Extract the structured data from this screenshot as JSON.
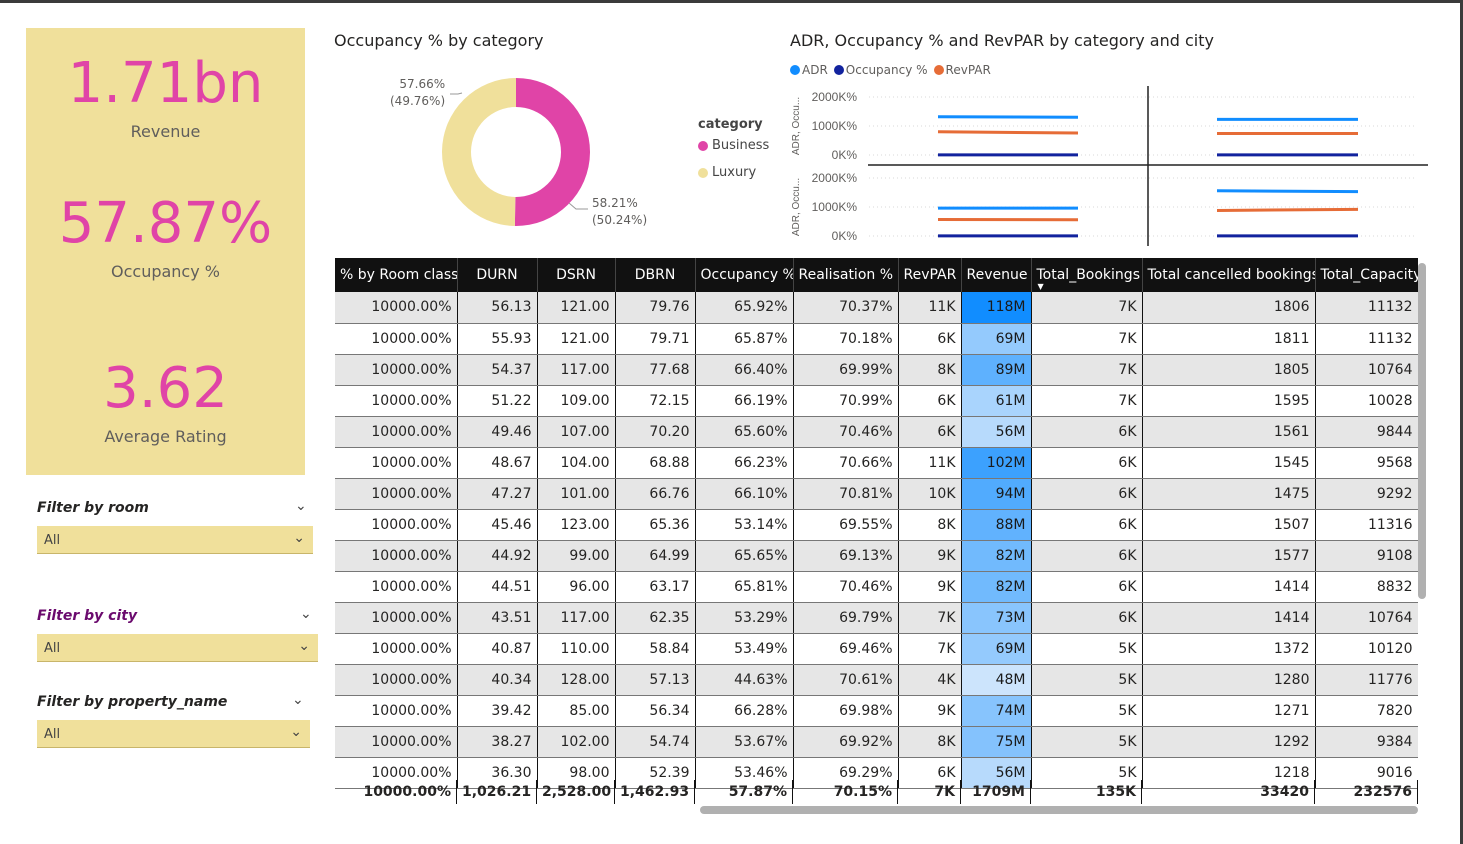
{
  "kpis": [
    {
      "value": "1.71bn",
      "label": "Revenue"
    },
    {
      "value": "57.87%",
      "label": "Occupancy %"
    },
    {
      "value": "3.62",
      "label": "Average Rating"
    }
  ],
  "slicers": [
    {
      "title": "Filter by room",
      "value": "All"
    },
    {
      "title": "Filter by city",
      "value": "All"
    },
    {
      "title": "Filter by property_name",
      "value": "All"
    }
  ],
  "donut": {
    "title": "Occupancy % by category",
    "legend_title": "category",
    "slices": [
      {
        "name": "Business",
        "value": 58.21,
        "label_main": "58.21%",
        "label_sub": "(50.24%)",
        "color": "#e044a7"
      },
      {
        "name": "Luxury",
        "value": 57.66,
        "label_main": "57.66%",
        "label_sub": "(49.76%)",
        "color": "#f0e09b"
      }
    ]
  },
  "line_chart": {
    "title": "ADR, Occupancy % and RevPAR by category and city",
    "legend": [
      {
        "name": "ADR",
        "color": "#118dff"
      },
      {
        "name": "Occupancy %",
        "color": "#12239e"
      },
      {
        "name": "RevPAR",
        "color": "#e66c37"
      }
    ],
    "y_axis_label": "ADR, Occu...",
    "y_ticks": [
      "2000K%",
      "1000K%",
      "0K%"
    ]
  },
  "chart_data": {
    "type": "line",
    "title": "ADR, Occupancy % and RevPAR by category and city",
    "ylabel": "ADR, Occu...",
    "ylim": [
      0,
      2500000
    ],
    "panels": [
      {
        "series": [
          {
            "name": "ADR",
            "values": [
              1320000,
              1300000
            ]
          },
          {
            "name": "Occupancy %",
            "values": [
              5800,
              5800
            ]
          },
          {
            "name": "RevPAR",
            "values": [
              800000,
              760000
            ]
          }
        ]
      },
      {
        "series": [
          {
            "name": "ADR",
            "values": [
              1230000,
              1230000
            ]
          },
          {
            "name": "Occupancy %",
            "values": [
              5800,
              5800
            ]
          },
          {
            "name": "RevPAR",
            "values": [
              740000,
              740000
            ]
          }
        ]
      },
      {
        "series": [
          {
            "name": "ADR",
            "values": [
              960000,
              960000
            ]
          },
          {
            "name": "Occupancy %",
            "values": [
              5800,
              5800
            ]
          },
          {
            "name": "RevPAR",
            "values": [
              570000,
              560000
            ]
          }
        ]
      },
      {
        "series": [
          {
            "name": "ADR",
            "values": [
              1560000,
              1530000
            ]
          },
          {
            "name": "Occupancy %",
            "values": [
              5800,
              5800
            ]
          },
          {
            "name": "RevPAR",
            "values": [
              880000,
              920000
            ]
          }
        ]
      }
    ]
  },
  "table": {
    "columns": [
      "% by Room class",
      "DURN",
      "DSRN",
      "DBRN",
      "Occupancy %",
      "Realisation %",
      "RevPAR",
      "Revenue",
      "Total_Bookings",
      "Total cancelled bookings",
      "Total_Capacity"
    ],
    "rows": [
      [
        "10000.00%",
        "56.13",
        "121.00",
        "79.76",
        "65.92%",
        "70.37%",
        "11K",
        "118M",
        "7K",
        "1806",
        "11132"
      ],
      [
        "10000.00%",
        "55.93",
        "121.00",
        "79.71",
        "65.87%",
        "70.18%",
        "6K",
        "69M",
        "7K",
        "1811",
        "11132"
      ],
      [
        "10000.00%",
        "54.37",
        "117.00",
        "77.68",
        "66.40%",
        "69.99%",
        "8K",
        "89M",
        "7K",
        "1805",
        "10764"
      ],
      [
        "10000.00%",
        "51.22",
        "109.00",
        "72.15",
        "66.19%",
        "70.99%",
        "6K",
        "61M",
        "7K",
        "1595",
        "10028"
      ],
      [
        "10000.00%",
        "49.46",
        "107.00",
        "70.20",
        "65.60%",
        "70.46%",
        "6K",
        "56M",
        "6K",
        "1561",
        "9844"
      ],
      [
        "10000.00%",
        "48.67",
        "104.00",
        "68.88",
        "66.23%",
        "70.66%",
        "11K",
        "102M",
        "6K",
        "1545",
        "9568"
      ],
      [
        "10000.00%",
        "47.27",
        "101.00",
        "66.76",
        "66.10%",
        "70.81%",
        "10K",
        "94M",
        "6K",
        "1475",
        "9292"
      ],
      [
        "10000.00%",
        "45.46",
        "123.00",
        "65.36",
        "53.14%",
        "69.55%",
        "8K",
        "88M",
        "6K",
        "1507",
        "11316"
      ],
      [
        "10000.00%",
        "44.92",
        "99.00",
        "64.99",
        "65.65%",
        "69.13%",
        "9K",
        "82M",
        "6K",
        "1577",
        "9108"
      ],
      [
        "10000.00%",
        "44.51",
        "96.00",
        "63.17",
        "65.81%",
        "70.46%",
        "9K",
        "82M",
        "6K",
        "1414",
        "8832"
      ],
      [
        "10000.00%",
        "43.51",
        "117.00",
        "62.35",
        "53.29%",
        "69.79%",
        "7K",
        "73M",
        "6K",
        "1414",
        "10764"
      ],
      [
        "10000.00%",
        "40.87",
        "110.00",
        "58.84",
        "53.49%",
        "69.46%",
        "7K",
        "69M",
        "5K",
        "1372",
        "10120"
      ],
      [
        "10000.00%",
        "40.34",
        "128.00",
        "57.13",
        "44.63%",
        "70.61%",
        "4K",
        "48M",
        "5K",
        "1280",
        "11776"
      ],
      [
        "10000.00%",
        "39.42",
        "85.00",
        "56.34",
        "66.28%",
        "69.98%",
        "9K",
        "74M",
        "5K",
        "1271",
        "7820"
      ],
      [
        "10000.00%",
        "38.27",
        "102.00",
        "54.74",
        "53.67%",
        "69.92%",
        "8K",
        "75M",
        "5K",
        "1292",
        "9384"
      ],
      [
        "10000.00%",
        "36.30",
        "98.00",
        "52.39",
        "53.46%",
        "69.29%",
        "6K",
        "56M",
        "5K",
        "1218",
        "9016"
      ]
    ],
    "revenue_values": [
      118,
      69,
      89,
      61,
      56,
      102,
      94,
      88,
      82,
      82,
      73,
      69,
      48,
      74,
      75,
      56
    ],
    "totals": [
      "10000.00%",
      "1,026.21",
      "2,528.00",
      "1,462.93",
      "57.87%",
      "70.15%",
      "7K",
      "1709M",
      "135K",
      "33420",
      "232576"
    ]
  }
}
